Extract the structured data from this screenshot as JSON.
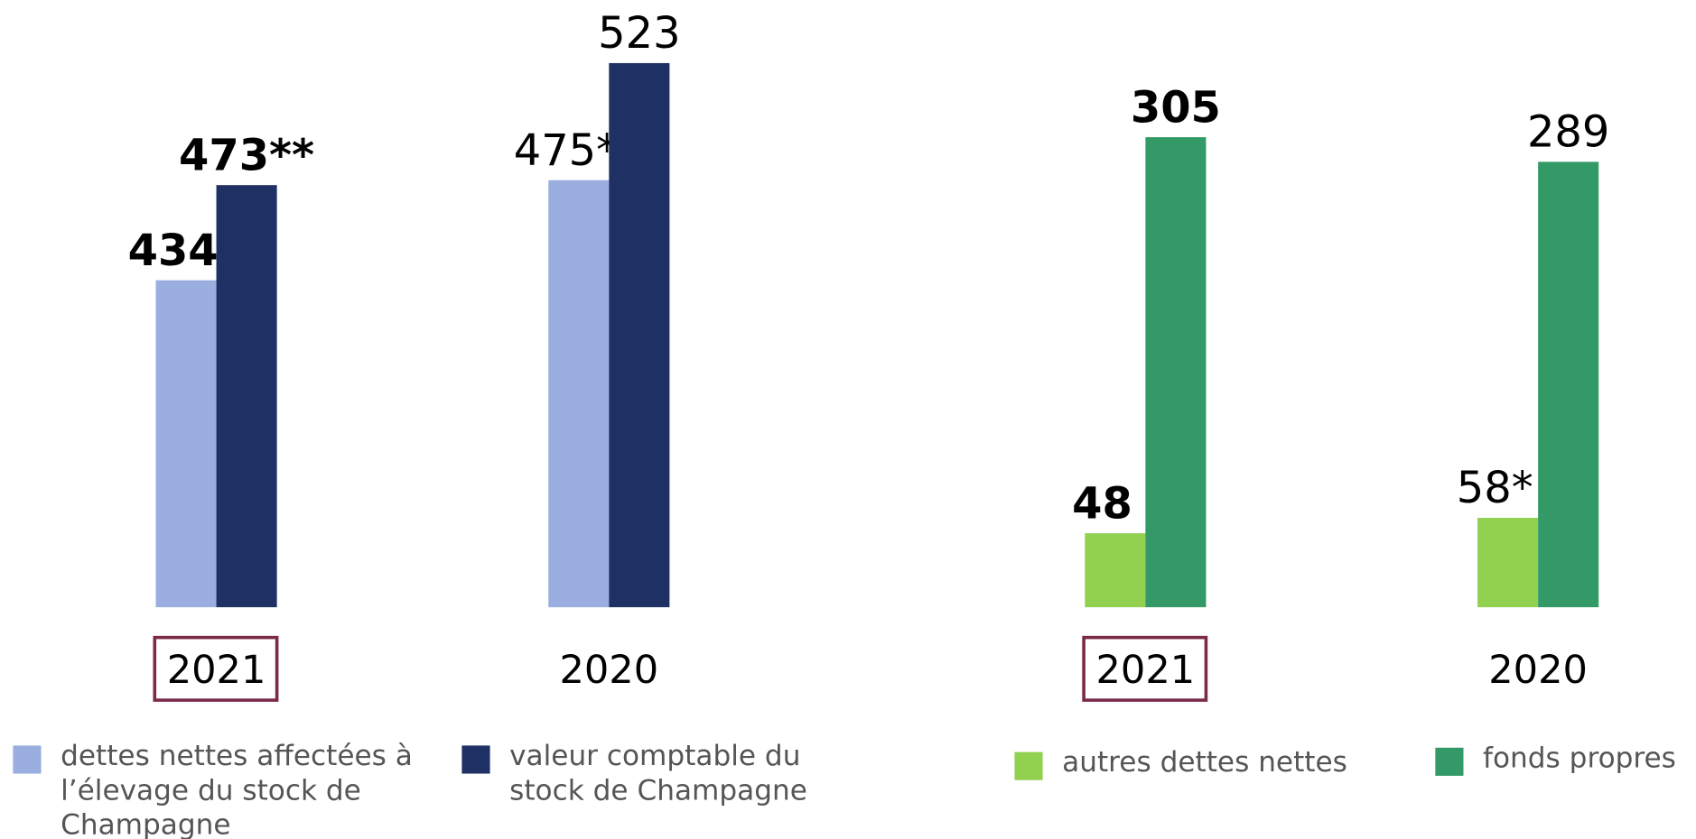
{
  "chart_data": [
    {
      "type": "bar",
      "categories": [
        "2021",
        "2020"
      ],
      "ylim": [
        300,
        540
      ],
      "series": [
        {
          "name": "dettes nettes affectées à l’élevage du stock de Champagne",
          "color": "#9aaee0",
          "values": [
            434,
            475
          ],
          "value_labels": [
            "434",
            "475*"
          ]
        },
        {
          "name": "valeur comptable du stock de Champagne",
          "color": "#1f3064",
          "values": [
            473,
            523
          ],
          "value_labels": [
            "473**",
            "523"
          ]
        }
      ]
    },
    {
      "type": "bar",
      "categories": [
        "2021",
        "2020"
      ],
      "ylim": [
        0,
        380
      ],
      "series": [
        {
          "name": "autres dettes nettes",
          "color": "#92d050",
          "values": [
            48,
            58
          ],
          "value_labels": [
            "48",
            "58*"
          ]
        },
        {
          "name": "fonds propres",
          "color": "#339966",
          "values": [
            305,
            289
          ],
          "value_labels": [
            "305",
            "289"
          ]
        }
      ]
    }
  ]
}
